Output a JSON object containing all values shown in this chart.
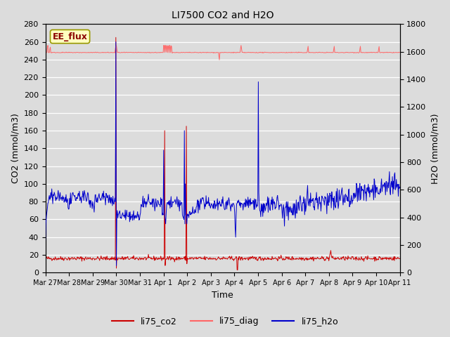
{
  "title": "LI7500 CO2 and H2O",
  "xlabel": "Time",
  "ylabel_left": "CO2 (mmol/m3)",
  "ylabel_right": "H2O (mmol/m3)",
  "ylim_left": [
    0,
    280
  ],
  "ylim_right": [
    0,
    1800
  ],
  "yticks_left": [
    0,
    20,
    40,
    60,
    80,
    100,
    120,
    140,
    160,
    180,
    200,
    220,
    240,
    260,
    280
  ],
  "yticks_right": [
    0,
    200,
    400,
    600,
    800,
    1000,
    1200,
    1400,
    1600,
    1800
  ],
  "bg_color": "#dcdcdc",
  "annotation_text": "EE_flux",
  "annotation_bg": "#ffffc0",
  "annotation_border": "#999900",
  "co2_color": "#cc0000",
  "diag_color": "#ff6666",
  "h2o_color": "#0000cc",
  "legend_co2": "li75_co2",
  "legend_diag": "li75_diag",
  "legend_h2o": "li75_h2o",
  "xtick_labels": [
    "Mar 27",
    "Mar 28",
    "Mar 29",
    "Mar 30",
    "Mar 31",
    "Apr 1",
    "Apr 2",
    "Apr 3",
    "Apr 4",
    "Apr 5",
    "Apr 6",
    "Apr 7",
    "Apr 8",
    "Apr 9",
    "Apr 10",
    "Apr 11"
  ],
  "n_days": 15,
  "seed": 42
}
